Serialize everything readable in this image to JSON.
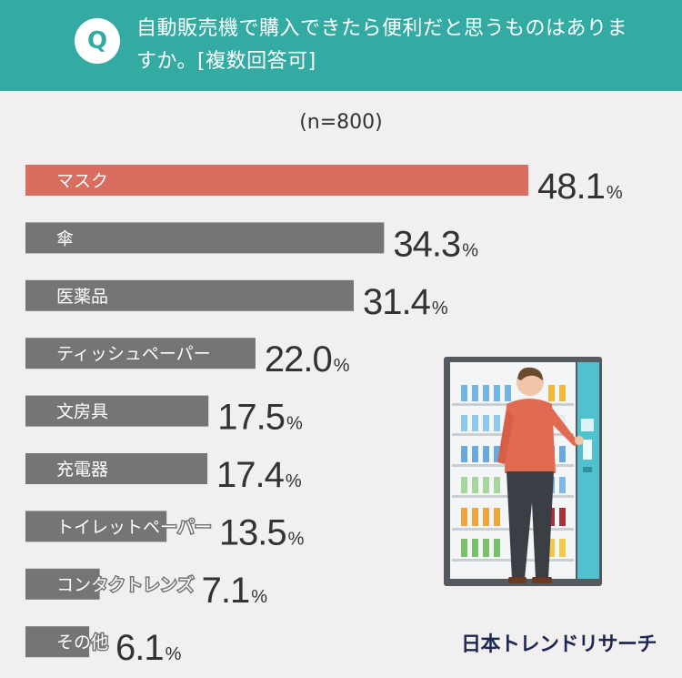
{
  "header": {
    "badge": "Q",
    "question": "自動販売機で購入できたら便利だと思うものはありますか。[複数回答可]"
  },
  "sample_size": "(n=800)",
  "brand": "日本トレンドリサーチ",
  "colors": {
    "header_bg": "#33aba3",
    "highlight_bar": "#d96d5f",
    "bar": "#757575",
    "page_bg": "#f1efef",
    "value_text": "#333333"
  },
  "chart_data": {
    "type": "bar",
    "orientation": "horizontal",
    "title": "自動販売機で購入できたら便利だと思うものはありますか。[複数回答可]",
    "categories": [
      "マスク",
      "傘",
      "医薬品",
      "ティッシュペーパー",
      "文房具",
      "充電器",
      "トイレットペーパー",
      "コンタクトレンズ",
      "その他"
    ],
    "values": [
      48.1,
      34.3,
      31.4,
      22.0,
      17.5,
      17.4,
      13.5,
      7.1,
      6.1
    ],
    "value_labels": [
      "48.1",
      "34.3",
      "31.4",
      "22.0",
      "17.5",
      "17.4",
      "13.5",
      "7.1",
      "6.1"
    ],
    "unit": "%",
    "highlight_index": 0,
    "xlim": [
      0,
      48.1
    ],
    "grid": false,
    "legend": "none"
  }
}
